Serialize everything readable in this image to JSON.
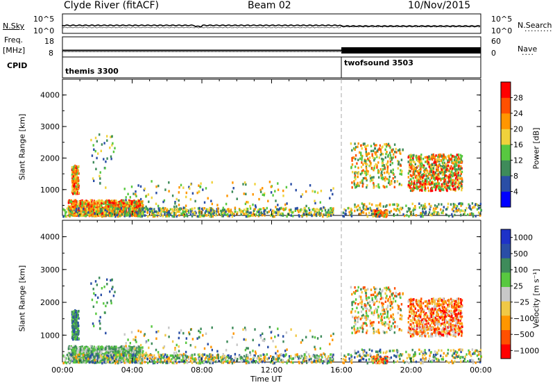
{
  "header": {
    "station": "Clyde River (fitACF)",
    "beam": "Beam 02",
    "date": "10/Nov/2015"
  },
  "top_panels": {
    "nsky_label": "N.Sky",
    "nsky_ticks": [
      "10^5",
      "10^0"
    ],
    "nsearch_label": "N.Search",
    "nsearch_ticks": [
      "10^5",
      "10^0"
    ],
    "nsearch_marker": "·········",
    "freq_label": "Freq.",
    "freq_unit": "[MHz]",
    "freq_ticks": [
      "18",
      "8"
    ],
    "nave_label": "Nave",
    "nave_ticks": [
      "60",
      "0"
    ],
    "nave_marker": "····",
    "cpid_label": "CPID",
    "cpid_1": "themis 3300",
    "cpid_2": "twofsound 3503"
  },
  "chart_data": [
    {
      "type": "heatmap",
      "name": "power",
      "ylabel": "Slant Range [km]",
      "ylim": [
        180,
        4500
      ],
      "yticks": [
        "4000",
        "3000",
        "2000",
        "1000"
      ],
      "xlim": [
        "00:00",
        "24:00"
      ],
      "colorbar_label": "Power [dB]",
      "colorbar_ticks": [
        "28",
        "24",
        "20",
        "16",
        "12",
        "8",
        "4"
      ],
      "colors": [
        "#0000ff",
        "#2a4ea6",
        "#3e8b5a",
        "#58c840",
        "#f0d23c",
        "#ff9600",
        "#ff5000",
        "#ff0000"
      ],
      "vline": "16:00"
    },
    {
      "type": "heatmap",
      "name": "velocity",
      "ylabel": "Slant Range [km]",
      "ylim": [
        180,
        4500
      ],
      "yticks": [
        "4000",
        "3000",
        "2000",
        "1000"
      ],
      "xlim": [
        "00:00",
        "24:00"
      ],
      "xticks": [
        "00:00",
        "04:00",
        "08:00",
        "12:00",
        "16:00",
        "20:00",
        "00:00"
      ],
      "xlabel": "Time UT",
      "colorbar_label": "Velocity [m s⁻¹]",
      "colorbar_ticks": [
        "1000",
        "500",
        "100",
        "25",
        "−25",
        "−100",
        "−500",
        "−1000"
      ],
      "colors": [
        "#ff0000",
        "#ff5000",
        "#ff9600",
        "#f0c846",
        "#c8c8c8",
        "#58c840",
        "#3e8b5a",
        "#2a4ea6",
        "#1e32c8"
      ],
      "vline": "16:00"
    }
  ]
}
